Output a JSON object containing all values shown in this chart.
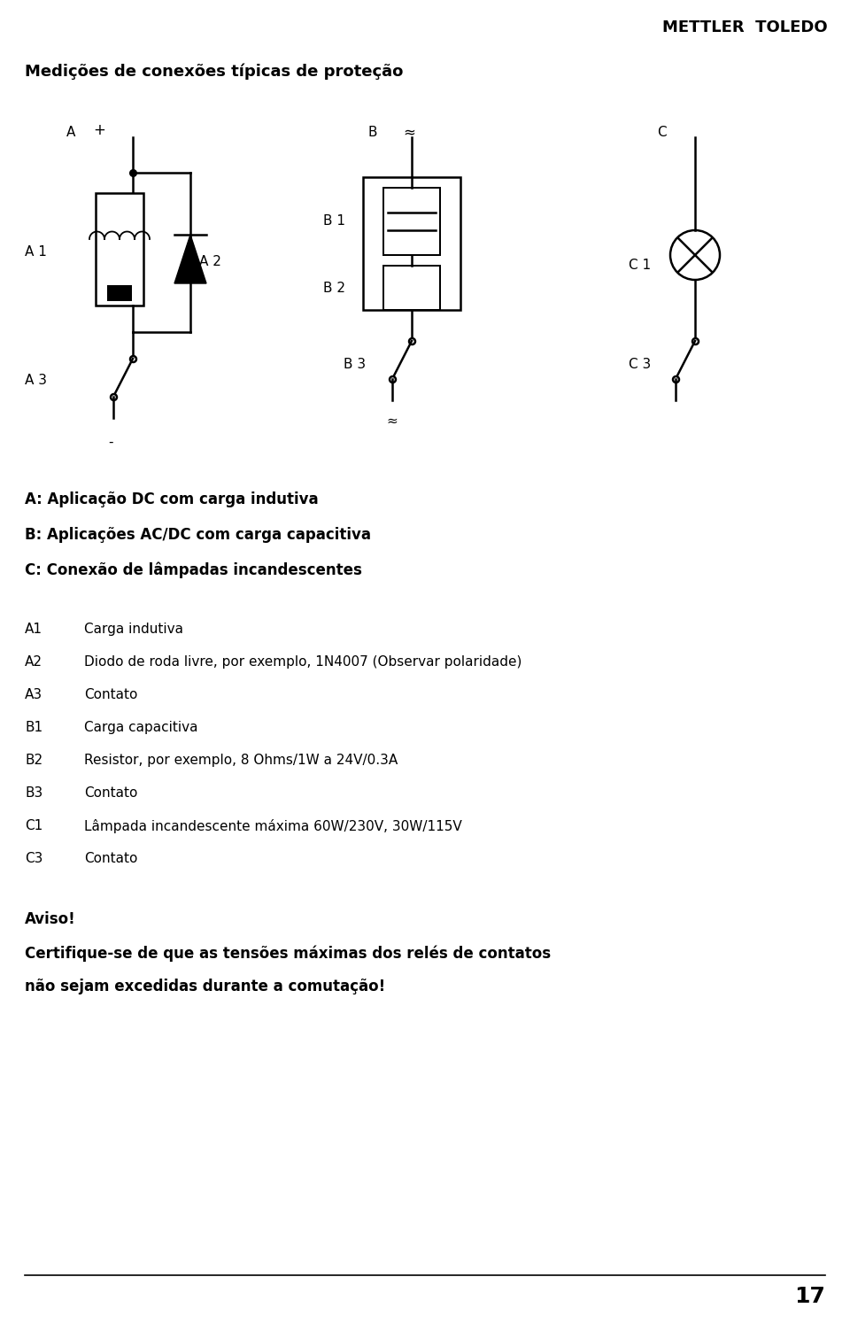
{
  "title_brand": "METTLER  TOLEDO",
  "title_main": "Medições de conexões típicas de proteção",
  "label_A": "A",
  "label_B": "B",
  "label_C": "C",
  "label_plus": "+",
  "label_approx_top": "≈",
  "label_minus": "-",
  "label_approx_bot": "≈",
  "label_A1": "A 1",
  "label_A2": "A 2",
  "label_A3": "A 3",
  "label_B1": "B 1",
  "label_B2": "B 2",
  "label_B3": "B 3",
  "label_C1": "C 1",
  "label_C3": "C 3",
  "desc_header_1": "A: Aplicação DC com carga indutiva",
  "desc_header_2": "B: Aplicações AC/DC com carga capacitiva",
  "desc_header_3": "C: Conexão de lâmpadas incandescentes",
  "desc_A1_lbl": "A1",
  "desc_A1": "Carga indutiva",
  "desc_A2_lbl": "A2",
  "desc_A2": "Diodo de roda livre, por exemplo, 1N4007 (Observar polaridade)",
  "desc_A3_lbl": "A3",
  "desc_A3": "Contato",
  "desc_B1_lbl": "B1",
  "desc_B1": "Carga capacitiva",
  "desc_B2_lbl": "B2",
  "desc_B2": "Resistor, por exemplo, 8 Ohms/1W a 24V/0.3A",
  "desc_B3_lbl": "B3",
  "desc_B3": "Contato",
  "desc_C1_lbl": "C1",
  "desc_C1": "Lâmpada incandescente máxima 60W/230V, 30W/115V",
  "desc_C3_lbl": "C3",
  "desc_C3": "Contato",
  "warning_title": "Aviso!",
  "warning_text_1": "Certifique-se de que as tensões máximas dos relés de contatos",
  "warning_text_2": "não sejam excedidas durante a comutação!",
  "page_number": "17",
  "bg_color": "#ffffff",
  "text_color": "#000000",
  "figw": 9.6,
  "figh": 15.03
}
